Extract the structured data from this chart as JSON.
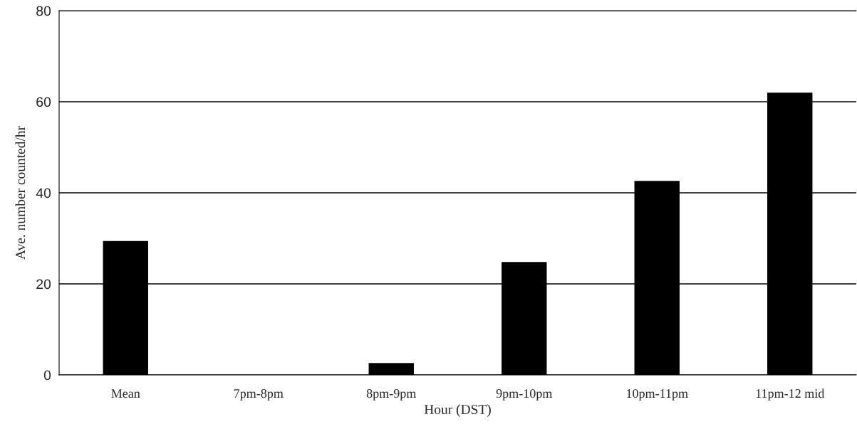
{
  "chart_data": {
    "type": "bar",
    "xlabel": "Hour (DST)",
    "ylabel": "Ave. number counted/hr",
    "categories": [
      "Mean",
      "7pm-8pm",
      "8pm-9pm",
      "9pm-10pm",
      "10pm-11pm",
      "11pm-12 mid"
    ],
    "values": [
      29.4,
      0,
      2.6,
      24.8,
      42.6,
      62.0
    ],
    "color": "#000000",
    "ylim": [
      0,
      80
    ],
    "yticks": [
      0,
      20,
      40,
      60,
      80
    ],
    "grid": "y"
  }
}
